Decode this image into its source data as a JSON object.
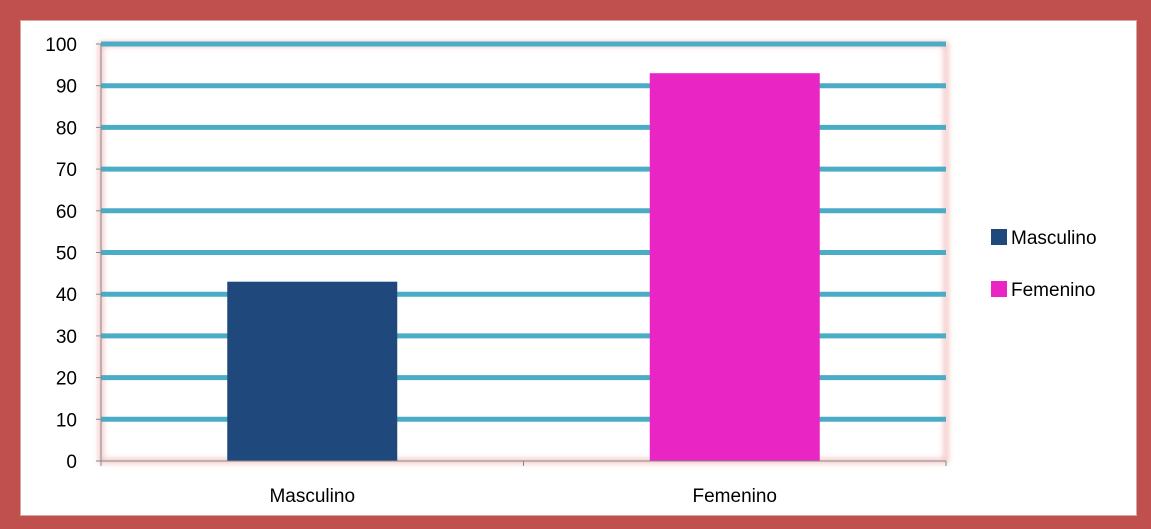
{
  "chart_data": {
    "type": "bar",
    "title": "",
    "xlabel": "",
    "ylabel": "",
    "ylim": [
      0,
      100
    ],
    "yticks": [
      0,
      10,
      20,
      30,
      40,
      50,
      60,
      70,
      80,
      90,
      100
    ],
    "grid": true,
    "legend_placement": "right",
    "categories": [
      "Masculino",
      "Femenino"
    ],
    "series": [
      {
        "name": "Masculino",
        "color": "#1f497d",
        "values": [
          43,
          null
        ]
      },
      {
        "name": "Femenino",
        "color": "#e926c4",
        "values": [
          null,
          93
        ]
      }
    ],
    "colors": {
      "gridline": "#4bacc6",
      "frame": "#c0504d",
      "plot_glow": "#f2b5b3"
    }
  }
}
